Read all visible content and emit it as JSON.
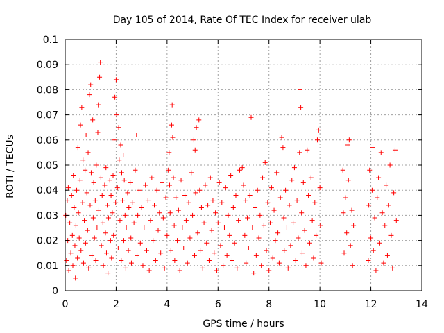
{
  "chart_data": {
    "type": "scatter",
    "title": "Day 105 of 2014, Rate Of TEC Index for receiver ulab",
    "xlabel": "GPS time / hours",
    "ylabel": "ROTI / TECUs",
    "xlim": [
      0,
      14
    ],
    "ylim": [
      0,
      0.1
    ],
    "xticks": [
      0,
      2,
      4,
      6,
      8,
      10,
      12,
      14
    ],
    "yticks": [
      0,
      0.01,
      0.02,
      0.03,
      0.04,
      0.05,
      0.06,
      0.07,
      0.08,
      0.09,
      0.1
    ],
    "grid": true,
    "legend": "none",
    "marker": "+",
    "color": "#ff0000",
    "series": [
      {
        "name": "ROTI",
        "points": [
          [
            0.02,
            0.03
          ],
          [
            0.05,
            0.012
          ],
          [
            0.08,
            0.036
          ],
          [
            0.1,
            0.02
          ],
          [
            0.12,
            0.041
          ],
          [
            0.14,
            0.008
          ],
          [
            0.18,
            0.027
          ],
          [
            0.22,
            0.015
          ],
          [
            0.25,
            0.038
          ],
          [
            0.28,
            0.022
          ],
          [
            0.3,
            0.01
          ],
          [
            0.32,
            0.046
          ],
          [
            0.35,
            0.033
          ],
          [
            0.38,
            0.018
          ],
          [
            0.4,
            0.005
          ],
          [
            0.42,
            0.026
          ],
          [
            0.45,
            0.04
          ],
          [
            0.48,
            0.013
          ],
          [
            0.5,
            0.057
          ],
          [
            0.52,
            0.031
          ],
          [
            0.55,
            0.021
          ],
          [
            0.58,
            0.044
          ],
          [
            0.6,
            0.066
          ],
          [
            0.62,
            0.016
          ],
          [
            0.65,
            0.073
          ],
          [
            0.68,
            0.035
          ],
          [
            0.7,
            0.052
          ],
          [
            0.72,
            0.011
          ],
          [
            0.75,
            0.028
          ],
          [
            0.78,
            0.048
          ],
          [
            0.8,
            0.019
          ],
          [
            0.82,
            0.062
          ],
          [
            0.85,
            0.039
          ],
          [
            0.88,
            0.024
          ],
          [
            0.9,
            0.055
          ],
          [
            0.92,
            0.009
          ],
          [
            0.95,
            0.078
          ],
          [
            0.98,
            0.034
          ],
          [
            1.0,
            0.082
          ],
          [
            1.02,
            0.047
          ],
          [
            1.05,
            0.014
          ],
          [
            1.08,
            0.068
          ],
          [
            1.1,
            0.029
          ],
          [
            1.12,
            0.043
          ],
          [
            1.15,
            0.021
          ],
          [
            1.18,
            0.036
          ],
          [
            1.2,
            0.012
          ],
          [
            1.22,
            0.05
          ],
          [
            1.25,
            0.025
          ],
          [
            1.28,
            0.063
          ],
          [
            1.3,
            0.074
          ],
          [
            1.32,
            0.032
          ],
          [
            1.35,
            0.085
          ],
          [
            1.38,
            0.091
          ],
          [
            1.4,
            0.045
          ],
          [
            1.42,
            0.018
          ],
          [
            1.45,
            0.038
          ],
          [
            1.48,
            0.027
          ],
          [
            1.5,
            0.01
          ],
          [
            1.55,
            0.042
          ],
          [
            1.58,
            0.023
          ],
          [
            1.6,
            0.049
          ],
          [
            1.62,
            0.015
          ],
          [
            1.65,
            0.034
          ],
          [
            1.68,
            0.007
          ],
          [
            1.7,
            0.029
          ],
          [
            1.75,
            0.044
          ],
          [
            1.78,
            0.02
          ],
          [
            1.8,
            0.038
          ],
          [
            1.82,
            0.013
          ],
          [
            1.85,
            0.031
          ],
          [
            1.88,
            0.046
          ],
          [
            1.9,
            0.022
          ],
          [
            1.92,
            0.06
          ],
          [
            1.95,
            0.077
          ],
          [
            1.98,
            0.035
          ],
          [
            2.0,
            0.084
          ],
          [
            2.02,
            0.07
          ],
          [
            2.05,
            0.041
          ],
          [
            2.08,
            0.017
          ],
          [
            2.1,
            0.065
          ],
          [
            2.12,
            0.052
          ],
          [
            2.15,
            0.028
          ],
          [
            2.18,
            0.058
          ],
          [
            2.2,
            0.012
          ],
          [
            2.22,
            0.047
          ],
          [
            2.25,
            0.036
          ],
          [
            2.28,
            0.054
          ],
          [
            2.3,
            0.02
          ],
          [
            2.32,
            0.044
          ],
          [
            2.35,
            0.03
          ],
          [
            2.38,
            0.009
          ],
          [
            2.4,
            0.025
          ],
          [
            2.45,
            0.039
          ],
          [
            2.48,
            0.016
          ],
          [
            2.5,
            0.033
          ],
          [
            2.55,
            0.043
          ],
          [
            2.58,
            0.021
          ],
          [
            2.6,
            0.011
          ],
          [
            2.65,
            0.035
          ],
          [
            2.7,
            0.027
          ],
          [
            2.75,
            0.048
          ],
          [
            2.8,
            0.062
          ],
          [
            2.82,
            0.014
          ],
          [
            2.85,
            0.03
          ],
          [
            2.9,
            0.04
          ],
          [
            2.95,
            0.019
          ],
          [
            3.0,
            0.033
          ],
          [
            3.05,
            0.01
          ],
          [
            3.1,
            0.025
          ],
          [
            3.15,
            0.042
          ],
          [
            3.2,
            0.016
          ],
          [
            3.25,
            0.036
          ],
          [
            3.3,
            0.008
          ],
          [
            3.35,
            0.028
          ],
          [
            3.4,
            0.045
          ],
          [
            3.45,
            0.02
          ],
          [
            3.5,
            0.034
          ],
          [
            3.55,
            0.012
          ],
          [
            3.6,
            0.04
          ],
          [
            3.65,
            0.024
          ],
          [
            3.7,
            0.031
          ],
          [
            3.75,
            0.015
          ],
          [
            3.8,
            0.043
          ],
          [
            3.85,
            0.029
          ],
          [
            3.9,
            0.009
          ],
          [
            3.95,
            0.037
          ],
          [
            4.0,
            0.022
          ],
          [
            4.05,
            0.048
          ],
          [
            4.08,
            0.055
          ],
          [
            4.1,
            0.042
          ],
          [
            4.12,
            0.031
          ],
          [
            4.15,
            0.016
          ],
          [
            4.18,
            0.066
          ],
          [
            4.2,
            0.074
          ],
          [
            4.22,
            0.061
          ],
          [
            4.25,
            0.045
          ],
          [
            4.28,
            0.026
          ],
          [
            4.3,
            0.012
          ],
          [
            4.35,
            0.037
          ],
          [
            4.4,
            0.02
          ],
          [
            4.45,
            0.032
          ],
          [
            4.5,
            0.008
          ],
          [
            4.55,
            0.044
          ],
          [
            4.6,
            0.025
          ],
          [
            4.65,
            0.017
          ],
          [
            4.7,
            0.038
          ],
          [
            4.75,
            0.028
          ],
          [
            4.8,
            0.011
          ],
          [
            4.85,
            0.035
          ],
          [
            4.9,
            0.021
          ],
          [
            4.95,
            0.047
          ],
          [
            5.0,
            0.03
          ],
          [
            5.05,
            0.06
          ],
          [
            5.08,
            0.014
          ],
          [
            5.1,
            0.056
          ],
          [
            5.12,
            0.039
          ],
          [
            5.15,
            0.065
          ],
          [
            5.2,
            0.023
          ],
          [
            5.25,
            0.068
          ],
          [
            5.28,
            0.04
          ],
          [
            5.3,
            0.016
          ],
          [
            5.35,
            0.033
          ],
          [
            5.4,
            0.009
          ],
          [
            5.45,
            0.027
          ],
          [
            5.5,
            0.042
          ],
          [
            5.55,
            0.019
          ],
          [
            5.6,
            0.034
          ],
          [
            5.65,
            0.012
          ],
          [
            5.7,
            0.045
          ],
          [
            5.75,
            0.024
          ],
          [
            5.8,
            0.036
          ],
          [
            5.85,
            0.015
          ],
          [
            5.9,
            0.031
          ],
          [
            5.95,
            0.008
          ],
          [
            6.0,
            0.027
          ],
          [
            6.05,
            0.043
          ],
          [
            6.1,
            0.018
          ],
          [
            6.15,
            0.035
          ],
          [
            6.2,
            0.01
          ],
          [
            6.25,
            0.025
          ],
          [
            6.3,
            0.041
          ],
          [
            6.35,
            0.014
          ],
          [
            6.4,
            0.03
          ],
          [
            6.45,
            0.022
          ],
          [
            6.5,
            0.046
          ],
          [
            6.55,
            0.012
          ],
          [
            6.6,
            0.033
          ],
          [
            6.65,
            0.019
          ],
          [
            6.7,
            0.038
          ],
          [
            6.75,
            0.009
          ],
          [
            6.8,
            0.028
          ],
          [
            6.85,
            0.048
          ],
          [
            6.95,
            0.049
          ],
          [
            7.0,
            0.042
          ],
          [
            7.05,
            0.022
          ],
          [
            7.08,
            0.036
          ],
          [
            7.1,
            0.011
          ],
          [
            7.15,
            0.029
          ],
          [
            7.2,
            0.017
          ],
          [
            7.25,
            0.038
          ],
          [
            7.3,
            0.069
          ],
          [
            7.35,
            0.025
          ],
          [
            7.4,
            0.007
          ],
          [
            7.45,
            0.033
          ],
          [
            7.5,
            0.014
          ],
          [
            7.55,
            0.04
          ],
          [
            7.6,
            0.021
          ],
          [
            7.65,
            0.03
          ],
          [
            7.7,
            0.01
          ],
          [
            7.75,
            0.045
          ],
          [
            7.8,
            0.026
          ],
          [
            7.85,
            0.051
          ],
          [
            7.9,
            0.016
          ],
          [
            7.95,
            0.035
          ],
          [
            8.0,
            0.008
          ],
          [
            8.05,
            0.027
          ],
          [
            8.1,
            0.041
          ],
          [
            8.15,
            0.013
          ],
          [
            8.2,
            0.032
          ],
          [
            8.25,
            0.02
          ],
          [
            8.3,
            0.047
          ],
          [
            8.35,
            0.023
          ],
          [
            8.4,
            0.011
          ],
          [
            8.45,
            0.037
          ],
          [
            8.5,
            0.061
          ],
          [
            8.55,
            0.057
          ],
          [
            8.58,
            0.029
          ],
          [
            8.6,
            0.016
          ],
          [
            8.65,
            0.04
          ],
          [
            8.7,
            0.025
          ],
          [
            8.75,
            0.009
          ],
          [
            8.8,
            0.034
          ],
          [
            8.85,
            0.018
          ],
          [
            8.9,
            0.044
          ],
          [
            8.95,
            0.027
          ],
          [
            9.0,
            0.049
          ],
          [
            9.05,
            0.012
          ],
          [
            9.1,
            0.036
          ],
          [
            9.15,
            0.021
          ],
          [
            9.2,
            0.055
          ],
          [
            9.22,
            0.08
          ],
          [
            9.25,
            0.073
          ],
          [
            9.28,
            0.031
          ],
          [
            9.3,
            0.015
          ],
          [
            9.35,
            0.043
          ],
          [
            9.4,
            0.024
          ],
          [
            9.45,
            0.01
          ],
          [
            9.5,
            0.056
          ],
          [
            9.55,
            0.038
          ],
          [
            9.6,
            0.019
          ],
          [
            9.65,
            0.045
          ],
          [
            9.7,
            0.028
          ],
          [
            9.75,
            0.013
          ],
          [
            9.8,
            0.035
          ],
          [
            9.85,
            0.022
          ],
          [
            9.9,
            0.06
          ],
          [
            9.95,
            0.064
          ],
          [
            10.0,
            0.041
          ],
          [
            10.02,
            0.026
          ],
          [
            10.05,
            0.011
          ],
          [
            10.9,
            0.048
          ],
          [
            10.92,
            0.031
          ],
          [
            10.95,
            0.015
          ],
          [
            11.0,
            0.037
          ],
          [
            11.05,
            0.023
          ],
          [
            11.1,
            0.058
          ],
          [
            11.12,
            0.044
          ],
          [
            11.15,
            0.06
          ],
          [
            11.2,
            0.018
          ],
          [
            11.25,
            0.032
          ],
          [
            11.28,
            0.01
          ],
          [
            11.32,
            0.026
          ],
          [
            11.9,
            0.012
          ],
          [
            11.92,
            0.034
          ],
          [
            11.95,
            0.048
          ],
          [
            12.0,
            0.021
          ],
          [
            12.05,
            0.04
          ],
          [
            12.08,
            0.057
          ],
          [
            12.1,
            0.016
          ],
          [
            12.15,
            0.029
          ],
          [
            12.2,
            0.008
          ],
          [
            12.25,
            0.037
          ],
          [
            12.3,
            0.045
          ],
          [
            12.35,
            0.019
          ],
          [
            12.4,
            0.055
          ],
          [
            12.45,
            0.031
          ],
          [
            12.5,
            0.011
          ],
          [
            12.55,
            0.026
          ],
          [
            12.6,
            0.042
          ],
          [
            12.65,
            0.014
          ],
          [
            12.7,
            0.034
          ],
          [
            12.75,
            0.05
          ],
          [
            12.8,
            0.022
          ],
          [
            12.85,
            0.009
          ],
          [
            12.9,
            0.039
          ],
          [
            12.95,
            0.056
          ],
          [
            13.0,
            0.028
          ]
        ]
      }
    ],
    "coverage_gaps_hours": [
      [
        10.1,
        10.85
      ],
      [
        11.35,
        11.85
      ]
    ]
  }
}
